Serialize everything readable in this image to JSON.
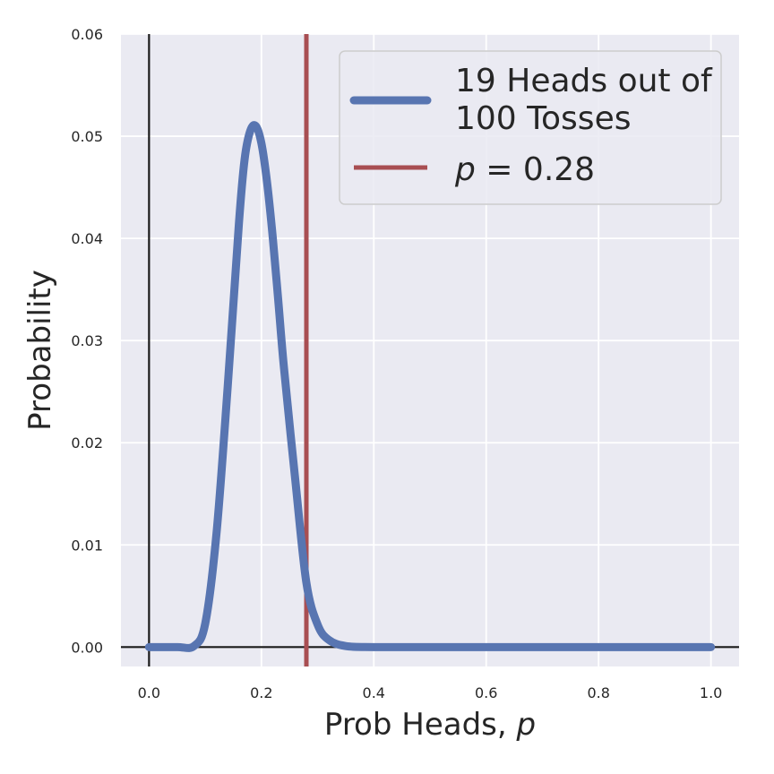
{
  "chart_data": {
    "type": "line",
    "xlabel": "Prob Heads, p",
    "ylabel": "Probability",
    "xlim": [
      -0.05,
      1.05
    ],
    "ylim": [
      -0.0019,
      0.06
    ],
    "x_ticks": [
      "0.0",
      "0.2",
      "0.4",
      "0.6",
      "0.8",
      "1.0"
    ],
    "y_ticks": [
      "0.00",
      "0.01",
      "0.02",
      "0.03",
      "0.04",
      "0.05",
      "0.06"
    ],
    "grid": true,
    "legend_position": "upper-right",
    "series": [
      {
        "name": "19 Heads out of 100 Tosses",
        "legend_lines": [
          "19 Heads out of",
          "100 Tosses"
        ],
        "color": "#5875b1",
        "distribution": "binomial likelihood, k=19, n=100",
        "x": [
          0.0,
          0.05,
          0.08,
          0.1,
          0.12,
          0.14,
          0.16,
          0.17,
          0.18,
          0.19,
          0.2,
          0.21,
          0.22,
          0.23,
          0.24,
          0.26,
          0.28,
          0.3,
          0.32,
          0.35,
          0.4,
          0.5,
          0.6,
          0.8,
          1.0
        ],
        "values": [
          0.0,
          0.0,
          0.0001,
          0.0023,
          0.0111,
          0.0255,
          0.0415,
          0.0477,
          0.0505,
          0.051,
          0.0493,
          0.0455,
          0.0402,
          0.0339,
          0.0274,
          0.0165,
          0.0063,
          0.0022,
          0.0007,
          0.0001,
          0.0,
          0.0,
          0.0,
          0.0,
          0.0
        ]
      },
      {
        "name": "p = 0.28",
        "legend_label_var": "p",
        "legend_label_rest": " = 0.28",
        "color": "#a84e52",
        "type": "vline",
        "x": 0.28
      }
    ]
  }
}
